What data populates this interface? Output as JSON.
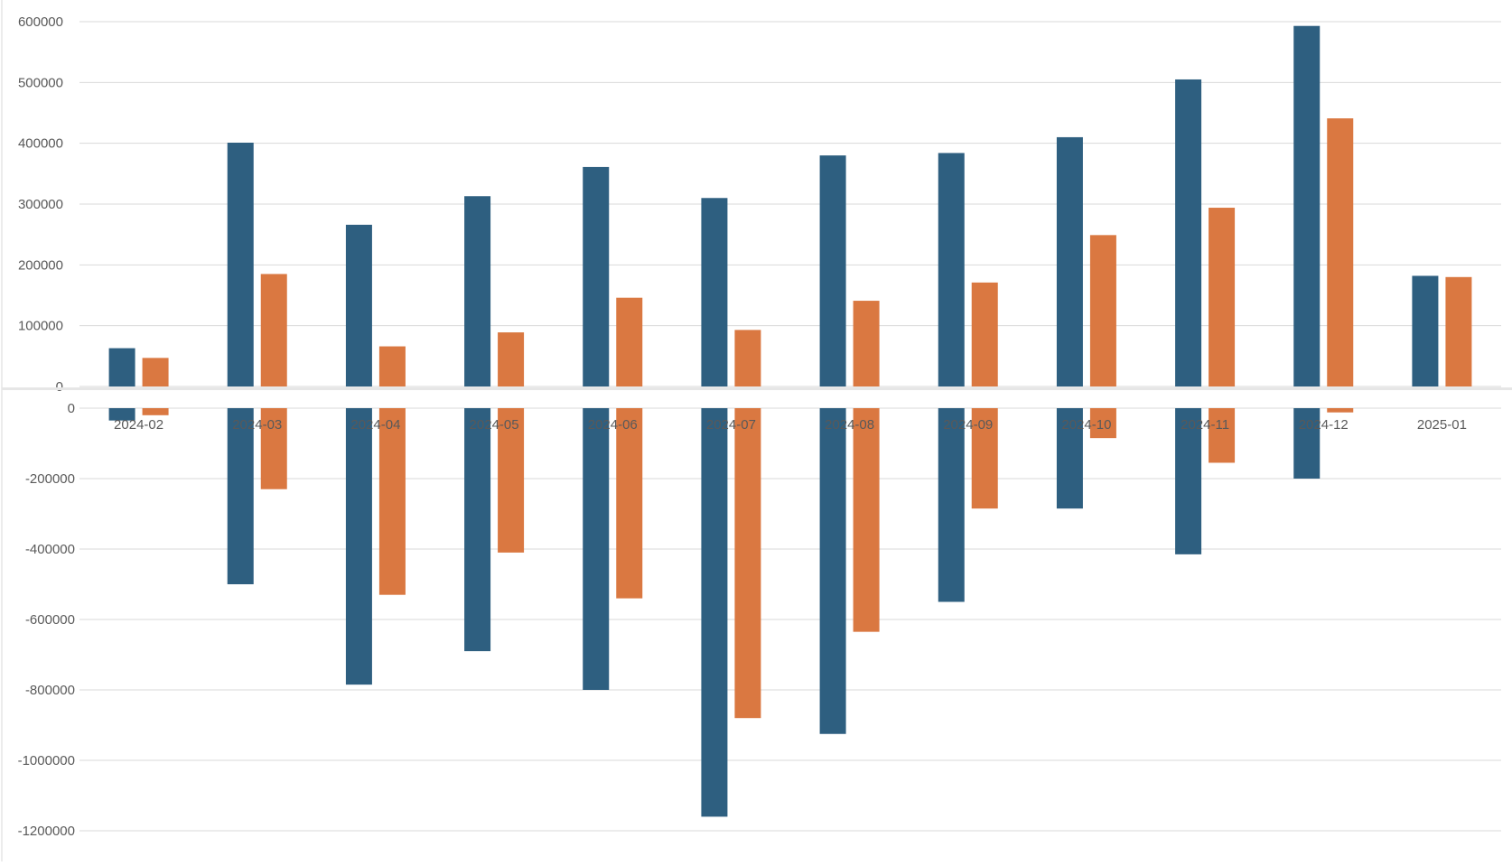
{
  "colors": {
    "series_1": "#2e5f80",
    "series_2": "#da7841",
    "grid": "#d9d9d9",
    "text": "#595959"
  },
  "chart_data": [
    {
      "type": "bar",
      "title": "",
      "xlabel": "",
      "ylabel": "",
      "ylim": [
        0,
        600000
      ],
      "yticks": [
        "600000",
        "500000",
        "400000",
        "300000",
        "200000",
        "100000",
        "0"
      ],
      "grid": true,
      "legend": "none",
      "categories": [
        "2024-02",
        "2024-03",
        "2024-04",
        "2024-05",
        "2024-06",
        "2024-07",
        "2024-08",
        "2024-09",
        "2024-10",
        "2024-11",
        "2024-12",
        "2025-01"
      ],
      "series": [
        {
          "color": "#2e5f80",
          "values": [
            63000,
            401000,
            266000,
            313000,
            361000,
            310000,
            380000,
            384000,
            410000,
            505000,
            593000,
            182000
          ]
        },
        {
          "color": "#da7841",
          "values": [
            47000,
            185000,
            66000,
            89000,
            146000,
            93000,
            141000,
            171000,
            249000,
            294000,
            441000,
            180000
          ]
        }
      ]
    },
    {
      "type": "bar",
      "title": "",
      "xlabel": "",
      "ylabel": "",
      "ylim": [
        -1200000,
        0
      ],
      "yticks": [
        "0",
        "-200000",
        "-400000",
        "-600000",
        "-800000",
        "-1000000",
        "-1200000"
      ],
      "grid": true,
      "legend": "none",
      "categories": [
        "2024-02",
        "2024-03",
        "2024-04",
        "2024-05",
        "2024-06",
        "2024-07",
        "2024-08",
        "2024-09",
        "2024-10",
        "2024-11",
        "2024-12",
        "2025-01"
      ],
      "series": [
        {
          "color": "#2e5f80",
          "values": [
            -35000,
            -500000,
            -785000,
            -690000,
            -800000,
            -1160000,
            -925000,
            -550000,
            -285000,
            -415000,
            -200000,
            0
          ]
        },
        {
          "color": "#da7841",
          "values": [
            -20000,
            -230000,
            -530000,
            -410000,
            -540000,
            -880000,
            -635000,
            -285000,
            -85000,
            -155000,
            -12000,
            0
          ]
        }
      ]
    }
  ]
}
